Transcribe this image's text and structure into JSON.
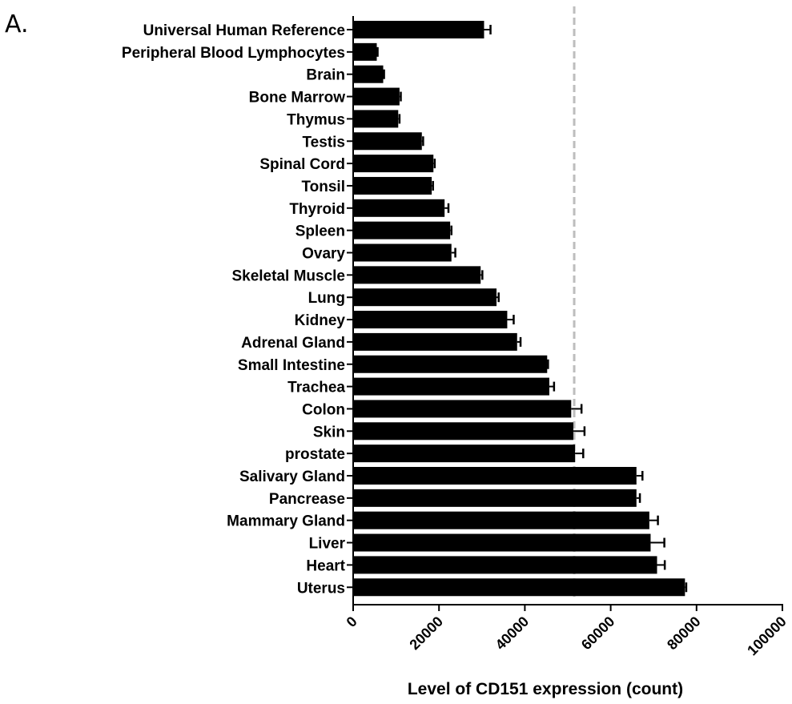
{
  "panel_label": "A.",
  "chart_data": {
    "type": "bar",
    "orientation": "horizontal",
    "title": "",
    "xlabel": "Level of CD151 expression  (count)",
    "ylabel": "",
    "xlim": [
      0,
      100000
    ],
    "xticks": [
      0,
      20000,
      40000,
      60000,
      80000,
      100000
    ],
    "xtick_labels": [
      "0",
      "20000",
      "40000",
      "60000",
      "80000",
      "100000"
    ],
    "grid": false,
    "reference_line": {
      "value": 51500,
      "style": "dashed",
      "color": "#bdbdbd"
    },
    "bar_color": "#000000",
    "categories": [
      "Universal Human Reference",
      "Peripheral Blood Lymphocytes",
      "Brain",
      "Bone Marrow",
      "Thymus",
      "Testis",
      "Spinal Cord",
      "Tonsil",
      "Thyroid",
      "Spleen",
      "Ovary",
      "Skeletal Muscle",
      "Lung",
      "Kidney",
      "Adrenal Gland",
      "Small Intestine",
      "Trachea",
      "Colon",
      "Skin",
      "prostate",
      "Salivary Gland",
      "Pancrease",
      "Mammary Gland",
      "Liver",
      "Heart",
      "Uterus"
    ],
    "values": [
      30500,
      5500,
      7000,
      10800,
      10500,
      16000,
      18700,
      18300,
      21300,
      22600,
      22900,
      29700,
      33400,
      35900,
      38200,
      45200,
      45700,
      50800,
      51300,
      51700,
      66000,
      66000,
      69000,
      69300,
      70800,
      77300
    ],
    "errors": [
      1500,
      200,
      200,
      300,
      300,
      300,
      300,
      300,
      900,
      300,
      900,
      400,
      500,
      1500,
      800,
      200,
      1100,
      2400,
      2600,
      1900,
      1400,
      800,
      2000,
      3200,
      1800,
      300
    ]
  }
}
